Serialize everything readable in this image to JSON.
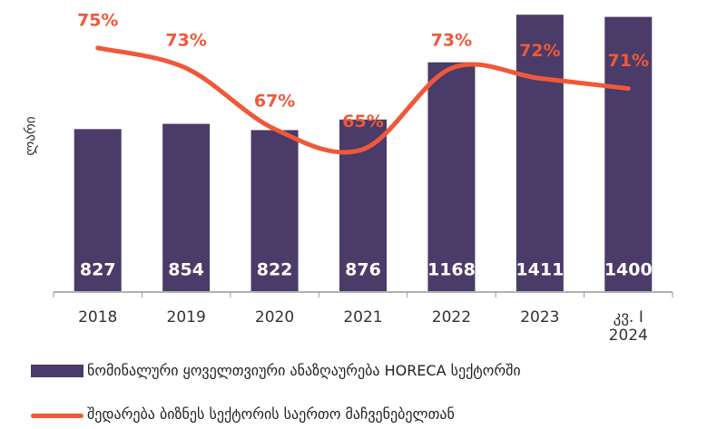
{
  "chart_data": {
    "type": "bar_line",
    "y_label": "ლარი",
    "categories": [
      "2018",
      "2019",
      "2020",
      "2021",
      "2022",
      "2023",
      "კვ. I 2024"
    ],
    "series": [
      {
        "name": "ნომინალური ყოველთვიური ანაზღაურება HORECA სექტორში",
        "type": "bar",
        "color": "#4a3b68",
        "values": [
          827,
          854,
          822,
          876,
          1168,
          1411,
          1400
        ]
      },
      {
        "name": "შედარება ბიზნეს სექტორის საერთო მაჩვენებელთან",
        "type": "line",
        "axis": "y2",
        "color": "#f0583a",
        "values": [
          75,
          73,
          67,
          65,
          73,
          72,
          71
        ],
        "value_labels": [
          "75%",
          "73%",
          "67%",
          "65%",
          "73%",
          "72%",
          "71%"
        ]
      }
    ],
    "ylim": [
      0,
      1500
    ],
    "y2lim": [
      51,
      80
    ]
  }
}
